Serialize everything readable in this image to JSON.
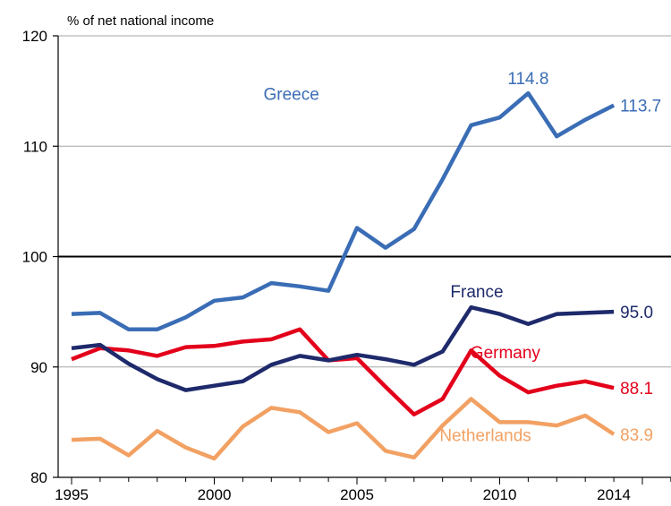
{
  "chart_data": {
    "type": "line",
    "ylabel": "% of net national income",
    "ylim": [
      80,
      120
    ],
    "yticks": [
      80,
      90,
      100,
      110,
      120
    ],
    "xlim": [
      1995,
      2016
    ],
    "xticks": [
      1995,
      2000,
      2005,
      2010,
      2014
    ],
    "reference_line": 100,
    "grid": "horizontal",
    "x": [
      1995,
      1996,
      1997,
      1998,
      1999,
      2000,
      2001,
      2002,
      2003,
      2004,
      2005,
      2006,
      2007,
      2008,
      2009,
      2010,
      2011,
      2012,
      2013,
      2014
    ],
    "series": [
      {
        "name": "Greece",
        "color": "#3a6db5",
        "values": [
          94.8,
          94.9,
          93.4,
          93.4,
          94.5,
          96.0,
          96.3,
          97.6,
          97.3,
          96.9,
          102.6,
          100.8,
          102.5,
          107.0,
          111.9,
          112.6,
          114.8,
          110.9,
          112.4,
          113.7
        ],
        "end_label": "113.7",
        "peak_label": "114.8"
      },
      {
        "name": "France",
        "color": "#1e2a6b",
        "values": [
          91.7,
          92.0,
          90.3,
          88.9,
          87.9,
          88.3,
          88.7,
          90.2,
          91.0,
          90.6,
          91.1,
          90.7,
          90.2,
          91.4,
          95.4,
          94.8,
          93.9,
          94.8,
          94.9,
          95.0
        ],
        "end_label": "95.0"
      },
      {
        "name": "Germany",
        "color": "#e3001b",
        "values": [
          90.7,
          91.7,
          91.5,
          91.0,
          91.8,
          91.9,
          92.3,
          92.5,
          93.4,
          90.6,
          90.8,
          88.2,
          85.7,
          87.1,
          91.5,
          89.2,
          87.7,
          88.3,
          88.7,
          88.1
        ],
        "end_label": "88.1"
      },
      {
        "name": "Netherlands",
        "color": "#f2a163",
        "values": [
          83.4,
          83.5,
          82.0,
          84.2,
          82.7,
          81.7,
          84.6,
          86.3,
          85.9,
          84.1,
          84.9,
          82.4,
          81.8,
          84.7,
          87.1,
          85.0,
          85.0,
          84.7,
          85.6,
          83.9
        ],
        "end_label": "83.9"
      }
    ]
  }
}
